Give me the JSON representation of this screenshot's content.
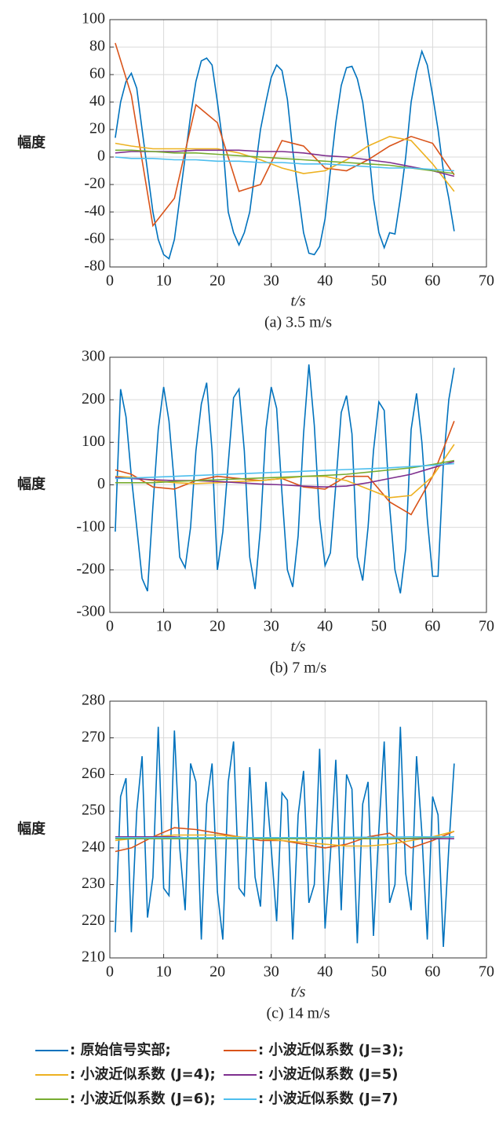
{
  "chart_data": [
    {
      "type": "line",
      "title": "(a) 3.5 m/s",
      "x_label": "t/s",
      "y_label": "幅度",
      "x": [
        1,
        2,
        3,
        4,
        5,
        6,
        7,
        8,
        9,
        10,
        11,
        12,
        13,
        14,
        15,
        16,
        17,
        18,
        19,
        20,
        21,
        22,
        23,
        24,
        25,
        26,
        27,
        28,
        29,
        30,
        31,
        32,
        33,
        34,
        35,
        36,
        37,
        38,
        39,
        40,
        41,
        42,
        43,
        44,
        45,
        46,
        47,
        48,
        49,
        50,
        51,
        52,
        53,
        54,
        55,
        56,
        57,
        58,
        59,
        60,
        61,
        62,
        63,
        64
      ],
      "xlim": [
        0,
        70
      ],
      "xticks": [
        0,
        10,
        20,
        30,
        40,
        50,
        60,
        70
      ],
      "ylim": [
        -80,
        100
      ],
      "yticks": [
        -80,
        -60,
        -40,
        -20,
        0,
        20,
        40,
        60,
        80,
        100
      ],
      "grid": true,
      "series": [
        {
          "name": ": 原始信号实部;",
          "color": "#0072bd",
          "values": [
            14,
            40,
            55,
            61,
            50,
            20,
            -10,
            -40,
            -60,
            -71,
            -74,
            -60,
            -30,
            0,
            30,
            55,
            70,
            72,
            67,
            40,
            10,
            -40,
            -55,
            -64,
            -55,
            -40,
            -10,
            20,
            40,
            58,
            67,
            63,
            42,
            5,
            -25,
            -55,
            -70,
            -71,
            -65,
            -45,
            -10,
            25,
            52,
            65,
            66,
            57,
            40,
            10,
            -30,
            -55,
            -66,
            -55,
            -56,
            -30,
            0,
            40,
            62,
            77,
            67,
            45,
            20,
            -10,
            -30,
            -54
          ]
        },
        {
          "name": ": 小波近似系数 (J=3);",
          "color": "#d95319",
          "x": [
            1,
            4,
            8,
            12,
            16,
            20,
            24,
            28,
            32,
            36,
            40,
            44,
            48,
            52,
            56,
            60,
            64
          ],
          "values": [
            83,
            45,
            -50,
            -30,
            38,
            25,
            -25,
            -20,
            12,
            8,
            -8,
            -10,
            -2,
            8,
            15,
            10,
            -13
          ]
        },
        {
          "name": ": 小波近似系数 (J=4);",
          "color": "#edb120",
          "x": [
            1,
            4,
            8,
            12,
            16,
            20,
            24,
            28,
            32,
            36,
            40,
            44,
            48,
            52,
            56,
            60,
            64
          ],
          "values": [
            10,
            8,
            6,
            6,
            6,
            6,
            3,
            -2,
            -8,
            -12,
            -10,
            -2,
            8,
            15,
            12,
            -5,
            -25
          ]
        },
        {
          "name": ": 小波近似系数 (J=5)",
          "color": "#7e2f8e",
          "x": [
            1,
            4,
            8,
            12,
            16,
            20,
            24,
            28,
            32,
            36,
            40,
            44,
            48,
            52,
            56,
            60,
            64
          ],
          "values": [
            3,
            4,
            4,
            4,
            5,
            5,
            5,
            4,
            4,
            3,
            1,
            0,
            -2,
            -4,
            -7,
            -10,
            -14
          ]
        },
        {
          "name": ": 小波近似系数 (J=6);",
          "color": "#77ac30",
          "x": [
            1,
            4,
            8,
            12,
            16,
            20,
            24,
            28,
            32,
            36,
            40,
            44,
            48,
            52,
            56,
            60,
            64
          ],
          "values": [
            5,
            5,
            4,
            3,
            3,
            2,
            1,
            0,
            -1,
            -2,
            -3,
            -4,
            -5,
            -6,
            -8,
            -10,
            -12
          ]
        },
        {
          "name": ": 小波近似系数 (J=7)",
          "color": "#4dbeee",
          "x": [
            1,
            4,
            8,
            12,
            16,
            20,
            24,
            28,
            32,
            36,
            40,
            44,
            48,
            52,
            56,
            60,
            64
          ],
          "values": [
            0,
            -1,
            -1,
            -2,
            -2,
            -3,
            -3,
            -4,
            -4,
            -5,
            -5,
            -6,
            -7,
            -8,
            -8,
            -9,
            -10
          ]
        }
      ]
    },
    {
      "type": "line",
      "title": "(b) 7 m/s",
      "x_label": "t/s",
      "y_label": "幅度",
      "x": [
        1,
        2,
        3,
        4,
        5,
        6,
        7,
        8,
        9,
        10,
        11,
        12,
        13,
        14,
        15,
        16,
        17,
        18,
        19,
        20,
        21,
        22,
        23,
        24,
        25,
        26,
        27,
        28,
        29,
        30,
        31,
        32,
        33,
        34,
        35,
        36,
        37,
        38,
        39,
        40,
        41,
        42,
        43,
        44,
        45,
        46,
        47,
        48,
        49,
        50,
        51,
        52,
        53,
        54,
        55,
        56,
        57,
        58,
        59,
        60,
        61,
        62,
        63,
        64
      ],
      "xlim": [
        0,
        70
      ],
      "xticks": [
        0,
        10,
        20,
        30,
        40,
        50,
        60,
        70
      ],
      "ylim": [
        -300,
        300
      ],
      "yticks": [
        -300,
        -200,
        -100,
        0,
        100,
        200,
        300
      ],
      "grid": true,
      "series": [
        {
          "color": "#0072bd",
          "values": [
            -110,
            225,
            160,
            20,
            -100,
            -220,
            -250,
            -50,
            130,
            230,
            150,
            0,
            -170,
            -195,
            -100,
            80,
            190,
            240,
            80,
            -200,
            -110,
            50,
            205,
            225,
            80,
            -170,
            -245,
            -100,
            130,
            230,
            180,
            -20,
            -200,
            -240,
            -120,
            120,
            283,
            140,
            -80,
            -190,
            -160,
            0,
            170,
            210,
            120,
            -170,
            -225,
            -100,
            80,
            195,
            175,
            -50,
            -200,
            -255,
            -150,
            130,
            215,
            100,
            -80,
            -215,
            -215,
            50,
            200,
            275
          ]
        },
        {
          "color": "#d95319",
          "x": [
            1,
            4,
            8,
            12,
            16,
            20,
            24,
            28,
            32,
            36,
            40,
            44,
            48,
            52,
            56,
            60,
            64
          ],
          "values": [
            35,
            25,
            -5,
            -10,
            10,
            20,
            15,
            10,
            15,
            -5,
            -10,
            20,
            20,
            -40,
            -70,
            20,
            150
          ]
        },
        {
          "color": "#edb120",
          "x": [
            1,
            4,
            8,
            12,
            16,
            20,
            24,
            28,
            32,
            36,
            40,
            44,
            48,
            52,
            56,
            60,
            64
          ],
          "values": [
            20,
            18,
            10,
            5,
            3,
            5,
            8,
            10,
            15,
            20,
            20,
            10,
            -10,
            -30,
            -25,
            20,
            95
          ]
        },
        {
          "color": "#7e2f8e",
          "x": [
            1,
            4,
            8,
            12,
            16,
            20,
            24,
            28,
            32,
            36,
            40,
            44,
            48,
            52,
            56,
            60,
            64
          ],
          "values": [
            18,
            15,
            12,
            10,
            10,
            8,
            5,
            2,
            0,
            -3,
            -5,
            -3,
            5,
            15,
            25,
            40,
            55
          ]
        },
        {
          "color": "#77ac30",
          "x": [
            1,
            4,
            8,
            12,
            16,
            20,
            24,
            28,
            32,
            36,
            40,
            44,
            48,
            52,
            56,
            60,
            64
          ],
          "values": [
            5,
            5,
            5,
            8,
            10,
            12,
            14,
            16,
            18,
            20,
            22,
            25,
            30,
            35,
            40,
            48,
            57
          ]
        },
        {
          "color": "#4dbeee",
          "x": [
            1,
            4,
            8,
            12,
            16,
            20,
            24,
            28,
            32,
            36,
            40,
            44,
            48,
            52,
            56,
            60,
            64
          ],
          "values": [
            15,
            16,
            18,
            20,
            22,
            24,
            26,
            28,
            30,
            32,
            34,
            36,
            38,
            40,
            43,
            46,
            50
          ]
        }
      ]
    },
    {
      "type": "line",
      "title": "(c) 14 m/s",
      "x_label": "t/s",
      "y_label": "幅度",
      "x": [
        1,
        2,
        3,
        4,
        5,
        6,
        7,
        8,
        9,
        10,
        11,
        12,
        13,
        14,
        15,
        16,
        17,
        18,
        19,
        20,
        21,
        22,
        23,
        24,
        25,
        26,
        27,
        28,
        29,
        30,
        31,
        32,
        33,
        34,
        35,
        36,
        37,
        38,
        39,
        40,
        41,
        42,
        43,
        44,
        45,
        46,
        47,
        48,
        49,
        50,
        51,
        52,
        53,
        54,
        55,
        56,
        57,
        58,
        59,
        60,
        61,
        62,
        63,
        64
      ],
      "xlim": [
        0,
        70
      ],
      "xticks": [
        0,
        10,
        20,
        30,
        40,
        50,
        60,
        70
      ],
      "ylim": [
        210,
        280
      ],
      "yticks": [
        210,
        220,
        230,
        240,
        250,
        260,
        270,
        280
      ],
      "grid": true,
      "series": [
        {
          "color": "#0072bd",
          "values": [
            217,
            254,
            259,
            217,
            250,
            265,
            221,
            232,
            273,
            229,
            227,
            272,
            240,
            223,
            263,
            258,
            215,
            252,
            263,
            228,
            215,
            258,
            269,
            229,
            227,
            262,
            232,
            224,
            258,
            240,
            220,
            255,
            253,
            215,
            249,
            261,
            225,
            230,
            267,
            218,
            238,
            264,
            223,
            260,
            256,
            214,
            252,
            258,
            216,
            245,
            269,
            225,
            230,
            273,
            233,
            223,
            265,
            244,
            215,
            254,
            249,
            213,
            240,
            263
          ]
        },
        {
          "color": "#d95319",
          "x": [
            1,
            4,
            8,
            12,
            16,
            20,
            24,
            28,
            32,
            36,
            40,
            44,
            48,
            52,
            56,
            60,
            64
          ],
          "values": [
            239,
            240,
            243,
            245.5,
            245,
            244,
            243,
            242,
            242,
            241,
            240,
            241,
            243,
            244,
            240,
            242,
            244.5
          ]
        },
        {
          "color": "#edb120",
          "x": [
            1,
            4,
            8,
            12,
            16,
            20,
            24,
            28,
            32,
            36,
            40,
            44,
            48,
            52,
            56,
            60,
            64
          ],
          "values": [
            242,
            242.5,
            243,
            243.5,
            243.5,
            243.5,
            243,
            242.5,
            242,
            241.5,
            241,
            240.5,
            240.5,
            241,
            242,
            243,
            244.5
          ]
        },
        {
          "color": "#7e2f8e",
          "x": [
            1,
            4,
            8,
            12,
            16,
            20,
            24,
            28,
            32,
            36,
            40,
            44,
            48,
            52,
            56,
            60,
            64
          ],
          "values": [
            243,
            243,
            243,
            243,
            242.5,
            242.5,
            242.5,
            242.5,
            242.5,
            242.5,
            242.5,
            242.5,
            242.5,
            242.5,
            242.5,
            242.5,
            242.5
          ]
        },
        {
          "color": "#77ac30",
          "x": [
            1,
            4,
            8,
            12,
            16,
            20,
            24,
            28,
            32,
            36,
            40,
            44,
            48,
            52,
            56,
            60,
            64
          ],
          "values": [
            242.5,
            242.5,
            242.5,
            242.5,
            242.5,
            242.5,
            242.5,
            242.5,
            242.5,
            242.5,
            242.5,
            242.5,
            242.5,
            242.5,
            242.6,
            242.8,
            243
          ]
        },
        {
          "color": "#4dbeee",
          "x": [
            1,
            4,
            8,
            12,
            16,
            20,
            24,
            28,
            32,
            36,
            40,
            44,
            48,
            52,
            56,
            60,
            64
          ],
          "values": [
            242.8,
            242.8,
            242.8,
            242.8,
            242.8,
            242.8,
            242.8,
            242.8,
            242.8,
            242.8,
            242.8,
            242.9,
            242.9,
            242.9,
            243,
            243,
            243
          ]
        }
      ]
    }
  ]
}
